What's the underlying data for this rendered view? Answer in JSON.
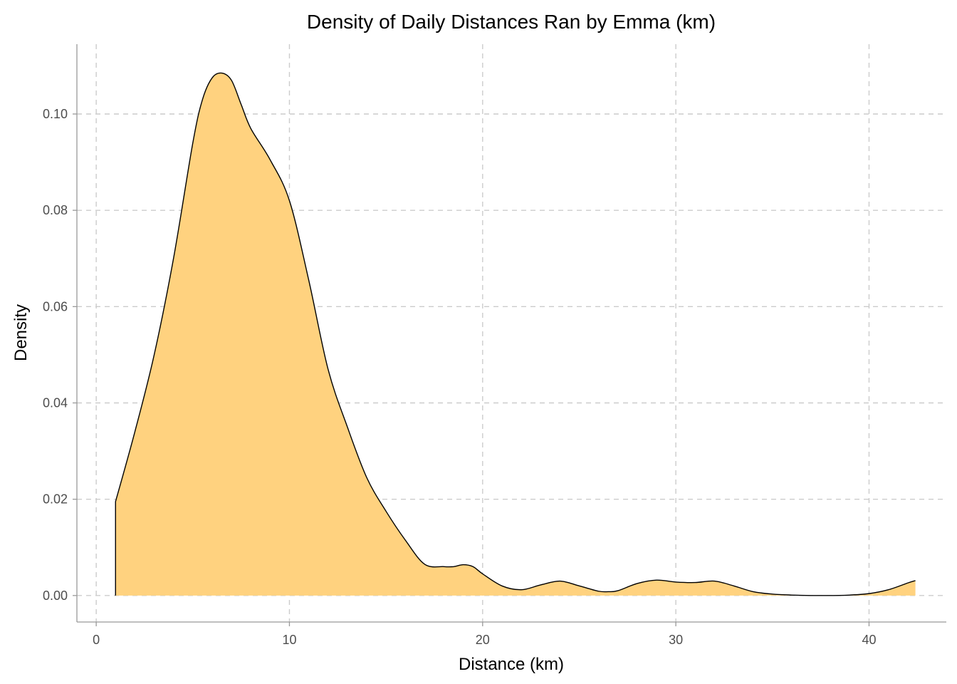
{
  "chart_data": {
    "type": "area",
    "title": "Density of Daily Distances Ran by Emma (km)",
    "xlabel": "Distance (km)",
    "ylabel": "Density",
    "xlim": [
      -1,
      44
    ],
    "ylim": [
      -0.0055,
      0.1145
    ],
    "x_ticks": [
      0,
      10,
      20,
      30,
      40
    ],
    "y_ticks": [
      0.0,
      0.02,
      0.04,
      0.06,
      0.08,
      0.1
    ],
    "x_tick_labels": [
      "0",
      "10",
      "20",
      "30",
      "40"
    ],
    "y_tick_labels": [
      "0.00",
      "0.02",
      "0.04",
      "0.06",
      "0.08",
      "0.10"
    ],
    "grid": true,
    "legend": "none",
    "fill_color": "#FFD27F",
    "line_color": "#000000",
    "series": [
      {
        "x": [
          1.0,
          2.0,
          3.0,
          4.0,
          5.0,
          5.5,
          6.0,
          6.5,
          7.0,
          7.5,
          8.0,
          9.0,
          10.0,
          11.0,
          12.0,
          13.0,
          14.0,
          15.0,
          16.0,
          17.0,
          18.0,
          18.5,
          19.0,
          19.5,
          20.0,
          21.0,
          22.0,
          23.0,
          24.0,
          25.0,
          26.0,
          26.5,
          27.0,
          28.0,
          29.0,
          30.0,
          31.0,
          32.0,
          33.0,
          34.0,
          35.0,
          36.0,
          37.0,
          38.0,
          39.0,
          40.0,
          41.0,
          42.0,
          42.4
        ],
        "y": [
          0.0195,
          0.034,
          0.05,
          0.07,
          0.094,
          0.103,
          0.1075,
          0.1085,
          0.107,
          0.102,
          0.097,
          0.0905,
          0.082,
          0.0655,
          0.047,
          0.035,
          0.0245,
          0.0175,
          0.0115,
          0.0065,
          0.006,
          0.006,
          0.0064,
          0.006,
          0.0045,
          0.002,
          0.0012,
          0.0022,
          0.003,
          0.002,
          0.0009,
          0.0008,
          0.001,
          0.0025,
          0.0032,
          0.0028,
          0.0027,
          0.003,
          0.002,
          0.0008,
          0.0003,
          0.0001,
          0.0,
          0.0,
          0.0001,
          0.0004,
          0.0012,
          0.0026,
          0.0031
        ]
      }
    ]
  }
}
